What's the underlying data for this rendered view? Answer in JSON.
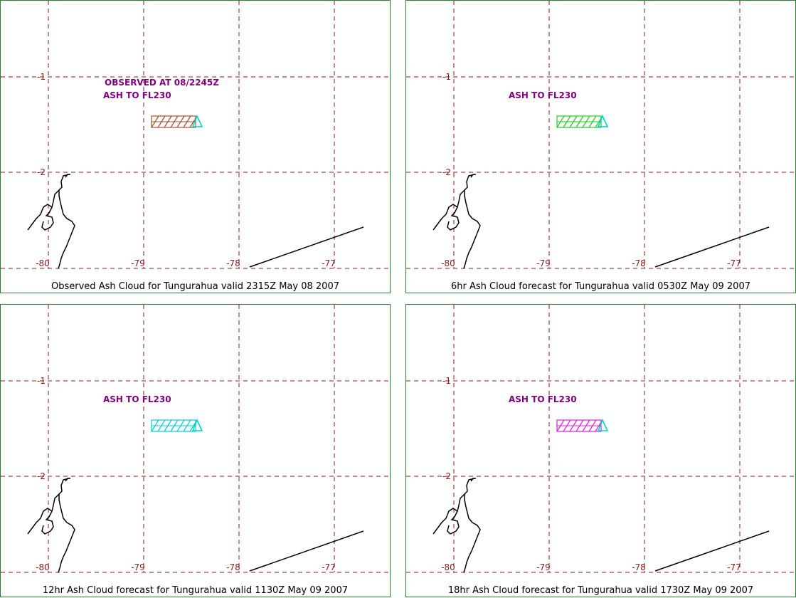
{
  "colors": {
    "border": "#2e7d32",
    "grid": "#8b1a1a",
    "grid_label": "#8b1a1a",
    "annotation": "#800080",
    "coast": "#000000",
    "volcano": "#00d0d0"
  },
  "grid": {
    "lat_labels": [
      "-1",
      "-2"
    ],
    "lon_labels": [
      "-80",
      "-79",
      "-78",
      "-77"
    ]
  },
  "panels": [
    {
      "caption": "Observed Ash Cloud for Tungurahua valid 2315Z May 08 2007",
      "annotations": [
        "OBSERVED AT 08/2245Z",
        "ASH TO FL230"
      ],
      "ash_color": "#a0522d",
      "volcano_icon": "triangle-icon"
    },
    {
      "caption": "6hr Ash Cloud forecast for Tungurahua valid 0530Z May 09 2007",
      "annotations": [
        "ASH TO FL230"
      ],
      "ash_color": "#22cc22",
      "volcano_icon": "triangle-icon"
    },
    {
      "caption": "12hr Ash Cloud forecast for Tungurahua valid 1130Z May 09 2007",
      "annotations": [
        "ASH TO FL230"
      ],
      "ash_color": "#00d0d0",
      "volcano_icon": "triangle-icon"
    },
    {
      "caption": "18hr Ash Cloud forecast for Tungurahua valid 1730Z May 09 2007",
      "annotations": [
        "ASH TO FL230"
      ],
      "ash_color": "#e020e0",
      "volcano_icon": "triangle-icon"
    }
  ]
}
